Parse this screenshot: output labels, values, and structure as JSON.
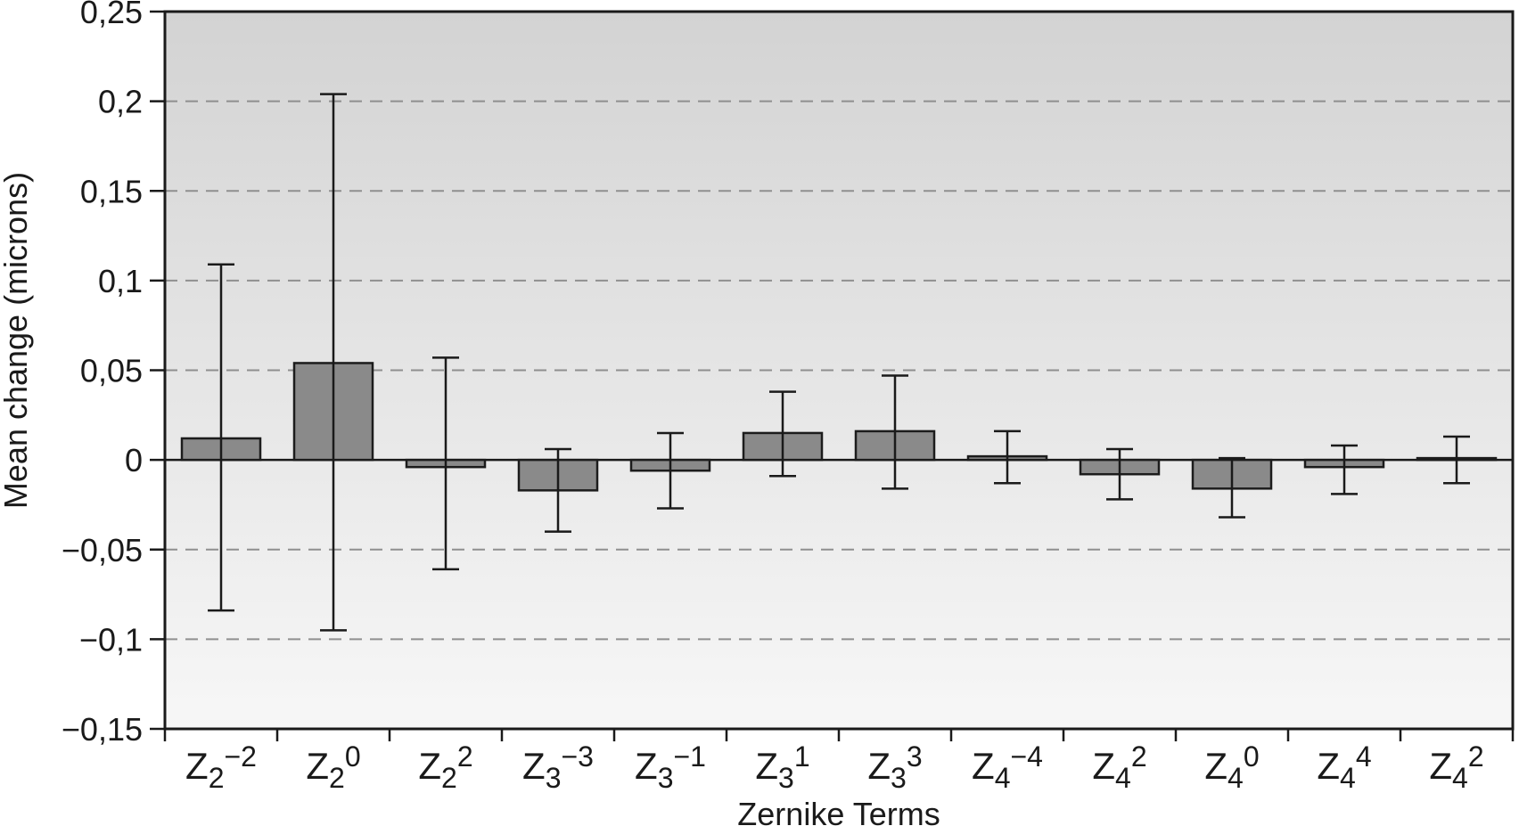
{
  "figure": {
    "background": "#ffffff"
  },
  "chart_data": {
    "type": "bar",
    "title": "",
    "xlabel": "Zernike Terms",
    "ylabel": "Mean change (microns)",
    "ylim": [
      -0.15,
      0.25
    ],
    "grid_on": true,
    "gridline_style": "dashed",
    "legend": null,
    "yticks": [
      {
        "value": 0.25,
        "label": "0,25"
      },
      {
        "value": 0.2,
        "label": "0,2"
      },
      {
        "value": 0.15,
        "label": "0,15"
      },
      {
        "value": 0.1,
        "label": "0,1"
      },
      {
        "value": 0.05,
        "label": "0,05"
      },
      {
        "value": 0,
        "label": "0"
      },
      {
        "value": -0.05,
        "label": "−0,05"
      },
      {
        "value": -0.1,
        "label": "−0,1"
      },
      {
        "value": -0.15,
        "label": "−0,15"
      }
    ],
    "gridlines": [
      0.2,
      0.15,
      0.1,
      0.05,
      -0.05,
      -0.1
    ],
    "categories": [
      {
        "base": "Z",
        "sub": "2",
        "sup": "−2"
      },
      {
        "base": "Z",
        "sub": "2",
        "sup": "0"
      },
      {
        "base": "Z",
        "sub": "2",
        "sup": "2"
      },
      {
        "base": "Z",
        "sub": "3",
        "sup": "−3"
      },
      {
        "base": "Z",
        "sub": "3",
        "sup": "−1"
      },
      {
        "base": "Z",
        "sub": "3",
        "sup": "1"
      },
      {
        "base": "Z",
        "sub": "3",
        "sup": "3"
      },
      {
        "base": "Z",
        "sub": "4",
        "sup": "−4"
      },
      {
        "base": "Z",
        "sub": "4",
        "sup": "2"
      },
      {
        "base": "Z",
        "sub": "4",
        "sup": "0"
      },
      {
        "base": "Z",
        "sub": "4",
        "sup": "4"
      },
      {
        "base": "Z",
        "sub": "4",
        "sup": "2"
      }
    ],
    "series": [
      {
        "name": "Mean change",
        "values": [
          0.012,
          0.054,
          -0.004,
          -0.017,
          -0.006,
          0.015,
          0.016,
          0.002,
          -0.008,
          -0.016,
          -0.004,
          0.001
        ],
        "error_high": [
          0.109,
          0.204,
          0.057,
          0.006,
          0.015,
          0.038,
          0.047,
          0.016,
          0.006,
          0.001,
          0.008,
          0.013
        ],
        "error_low": [
          -0.084,
          -0.095,
          -0.061,
          -0.04,
          -0.027,
          -0.009,
          -0.016,
          -0.013,
          -0.022,
          -0.032,
          -0.019,
          -0.013
        ]
      }
    ],
    "colors": {
      "bar_fill": "#8a8a8a",
      "bar_stroke": "#1c1c1c",
      "plot_bg_top": "#d3d3d3",
      "plot_bg_bottom": "#f7f7f7",
      "gridline": "#8f8f8f",
      "axis": "#1a1a1a",
      "text": "#1a1a1a"
    }
  }
}
